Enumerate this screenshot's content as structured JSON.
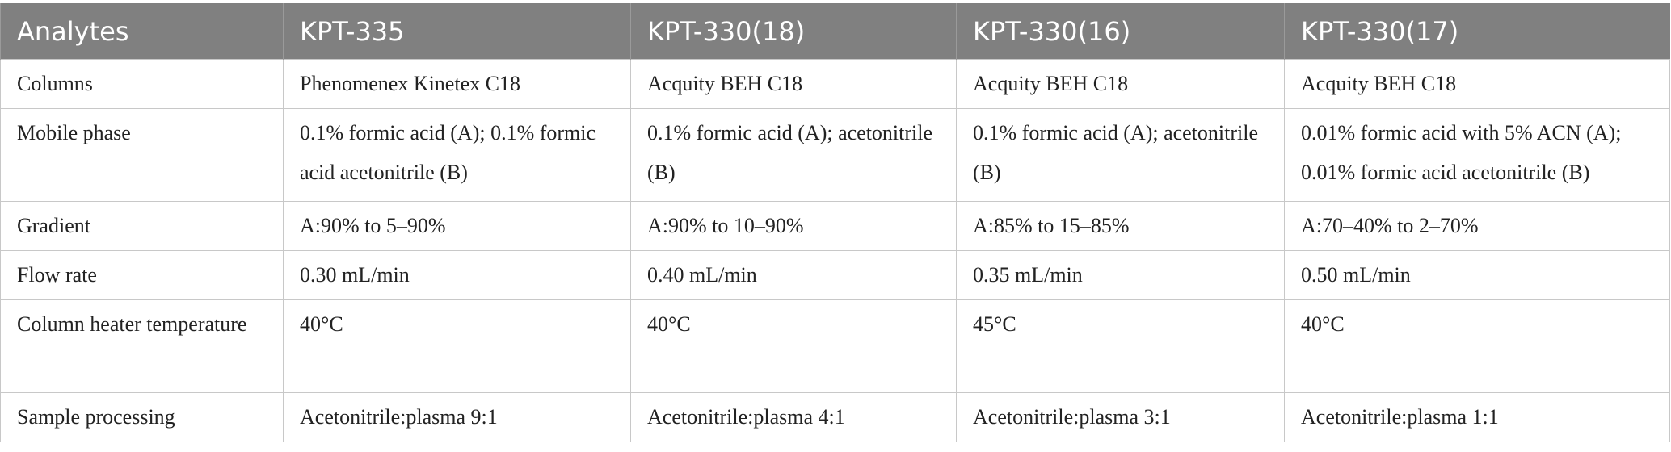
{
  "table": {
    "header": [
      "Analytes",
      "KPT-335",
      "KPT-330(18)",
      "KPT-330(16)",
      "KPT-330(17)"
    ],
    "rows": [
      [
        "Columns",
        "Phenomenex Kinetex C18",
        "Acquity BEH C18",
        "Acquity BEH C18",
        "Acquity BEH C18"
      ],
      [
        "Mobile phase",
        "0.1% formic acid (A); 0.1% formic acid acetonitrile (B)",
        "0.1% formic acid (A); acetonitrile (B)",
        "0.1% formic acid (A); acetonitrile (B)",
        "0.01% formic acid with 5% ACN (A); 0.01% formic acid acetonitrile (B)"
      ],
      [
        "Gradient",
        "A:90% to 5–90%",
        "A:90% to 10–90%",
        "A:85% to 15–85%",
        "A:70–40% to 2–70%"
      ],
      [
        "Flow rate",
        "0.30 mL/min",
        "0.40 mL/min",
        "0.35 mL/min",
        "0.50 mL/min"
      ],
      [
        "Column heater temperature",
        "40°C",
        "40°C",
        "45°C",
        "40°C"
      ],
      [
        "Sample processing",
        "Acetonitrile:plasma 9:1",
        "Acetonitrile:plasma 4:1",
        "Acetonitrile:plasma 3:1",
        "Acetonitrile:plasma 1:1"
      ]
    ]
  }
}
